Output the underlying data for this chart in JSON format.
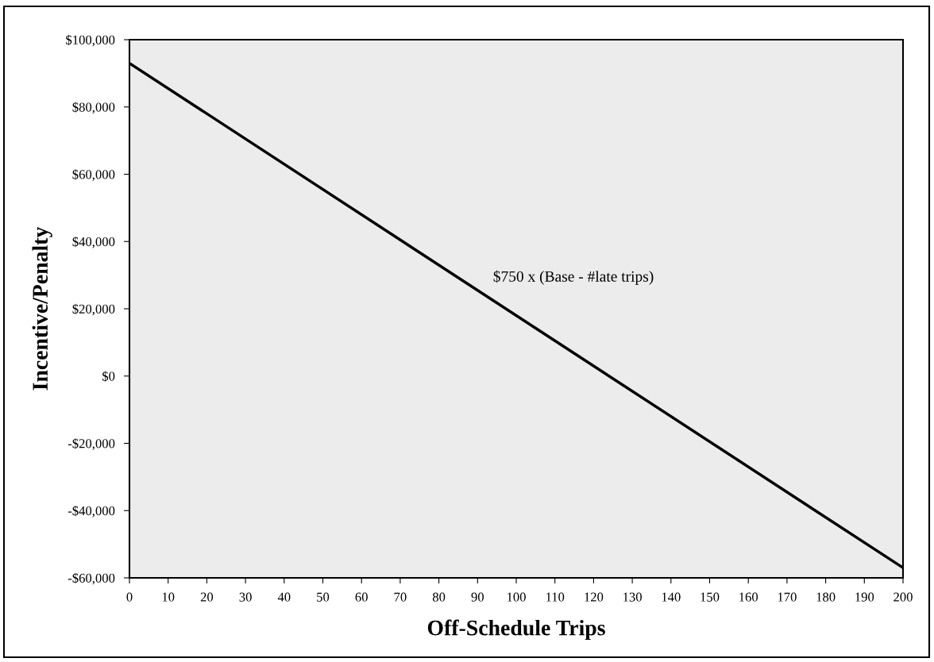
{
  "chart_data": {
    "type": "line",
    "xlabel": "Off-Schedule Trips",
    "ylabel": "Incentive/Penalty",
    "x": [
      0,
      200
    ],
    "series": [
      {
        "color": "#000000",
        "values": [
          93000,
          -57000
        ]
      }
    ],
    "annotations": [
      "$750 x (Base - #late trips)"
    ],
    "xlim": [
      0,
      200
    ],
    "xticks": [
      0,
      10,
      20,
      30,
      40,
      50,
      60,
      70,
      80,
      90,
      100,
      110,
      120,
      130,
      140,
      150,
      160,
      170,
      180,
      190,
      200
    ],
    "ylim": [
      -60000,
      100000
    ],
    "yticks": [
      {
        "value": -60000,
        "label": "-$60,000"
      },
      {
        "value": -40000,
        "label": "-$40,000"
      },
      {
        "value": -20000,
        "label": "-$20,000"
      },
      {
        "value": 0,
        "label": "$0"
      },
      {
        "value": 20000,
        "label": "$20,000"
      },
      {
        "value": 40000,
        "label": "$40,000"
      },
      {
        "value": 60000,
        "label": "$60,000"
      },
      {
        "value": 80000,
        "label": "$80,000"
      },
      {
        "value": 100000,
        "label": "$100,000"
      }
    ],
    "grid": false,
    "legend": false,
    "marker": "none",
    "line_style": "solid"
  }
}
